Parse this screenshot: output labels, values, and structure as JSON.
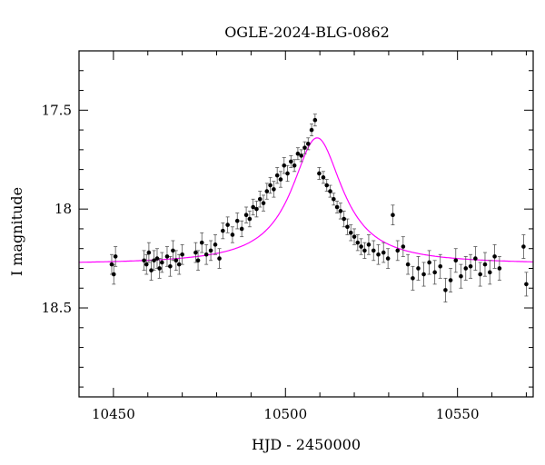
{
  "chart_data": {
    "type": "scatter",
    "title": "OGLE-2024-BLG-0862",
    "xlabel": "HJD - 2450000",
    "ylabel": "I magnitude",
    "xlim": [
      10440,
      10572
    ],
    "ylim": [
      18.95,
      17.2
    ],
    "y_inverted": true,
    "x_ticks": [
      10450,
      10500,
      10550
    ],
    "x_tick_labels": [
      "10450",
      "10500",
      "10550"
    ],
    "y_ticks": [
      17.5,
      18.0,
      18.5
    ],
    "y_tick_labels": [
      "17.5",
      "18",
      "18.5"
    ],
    "grid": false,
    "legend": "none",
    "colors": {
      "data": "#000000",
      "errorbar": "#555555",
      "model": "#ff00ff"
    },
    "series": [
      {
        "kind": "points_with_errorbars",
        "x": [
          10449.5,
          10450.1,
          10450.6,
          10458.9,
          10459.6,
          10460.3,
          10461.0,
          10461.8,
          10462.7,
          10463.4,
          10464.1,
          10465.6,
          10466.5,
          10467.3,
          10468.2,
          10469.1,
          10470.0,
          10473.9,
          10474.6,
          10475.7,
          10477.0,
          10478.3,
          10479.6,
          10480.8,
          10481.8,
          10483.2,
          10484.6,
          10486.0,
          10487.3,
          10488.6,
          10489.6,
          10490.6,
          10491.6,
          10492.6,
          10493.6,
          10494.6,
          10495.6,
          10496.6,
          10497.6,
          10498.6,
          10499.6,
          10500.6,
          10501.6,
          10502.6,
          10503.6,
          10504.6,
          10505.6,
          10506.6,
          10507.6,
          10508.6,
          10509.8,
          10511.0,
          10512.0,
          10513.0,
          10514.0,
          10515.0,
          10516.0,
          10517.0,
          10518.0,
          10519.0,
          10520.0,
          10521.0,
          10522.0,
          10523.0,
          10524.2,
          10525.6,
          10527.0,
          10528.5,
          10529.8,
          10531.2,
          10532.6,
          10534.2,
          10535.6,
          10537.0,
          10538.6,
          10540.2,
          10541.8,
          10543.4,
          10545.0,
          10546.5,
          10548.0,
          10549.5,
          10551.0,
          10552.4,
          10553.8,
          10555.2,
          10556.6,
          10558.0,
          10559.4,
          10560.8,
          10562.2,
          10569.2,
          10570.0
        ],
        "y": [
          18.28,
          18.33,
          18.24,
          18.26,
          18.28,
          18.22,
          18.31,
          18.26,
          18.25,
          18.3,
          18.27,
          18.24,
          18.29,
          18.21,
          18.26,
          18.28,
          18.23,
          18.22,
          18.26,
          18.17,
          18.23,
          18.21,
          18.18,
          18.25,
          18.11,
          18.08,
          18.13,
          18.06,
          18.1,
          18.03,
          18.05,
          17.99,
          18.0,
          17.95,
          17.97,
          17.91,
          17.88,
          17.9,
          17.83,
          17.85,
          17.78,
          17.82,
          17.76,
          17.78,
          17.72,
          17.73,
          17.69,
          17.67,
          17.6,
          17.55,
          17.82,
          17.84,
          17.88,
          17.91,
          17.95,
          17.99,
          18.01,
          18.05,
          18.09,
          18.12,
          18.14,
          18.17,
          18.19,
          18.21,
          18.18,
          18.21,
          18.23,
          18.22,
          18.25,
          18.03,
          18.21,
          18.19,
          18.28,
          18.35,
          18.3,
          18.33,
          18.27,
          18.32,
          18.29,
          18.41,
          18.36,
          18.26,
          18.34,
          18.3,
          18.29,
          18.25,
          18.33,
          18.28,
          18.32,
          18.24,
          18.3,
          18.19,
          18.38
        ],
        "err": [
          0.05,
          0.05,
          0.05,
          0.05,
          0.05,
          0.05,
          0.05,
          0.05,
          0.05,
          0.05,
          0.05,
          0.05,
          0.05,
          0.05,
          0.05,
          0.05,
          0.05,
          0.05,
          0.05,
          0.05,
          0.05,
          0.05,
          0.05,
          0.05,
          0.04,
          0.04,
          0.04,
          0.04,
          0.04,
          0.04,
          0.04,
          0.04,
          0.04,
          0.04,
          0.04,
          0.04,
          0.04,
          0.04,
          0.04,
          0.04,
          0.04,
          0.04,
          0.03,
          0.03,
          0.03,
          0.03,
          0.03,
          0.03,
          0.03,
          0.03,
          0.03,
          0.03,
          0.03,
          0.03,
          0.03,
          0.03,
          0.04,
          0.04,
          0.04,
          0.04,
          0.04,
          0.04,
          0.04,
          0.04,
          0.05,
          0.05,
          0.05,
          0.05,
          0.05,
          0.05,
          0.05,
          0.05,
          0.05,
          0.06,
          0.06,
          0.06,
          0.06,
          0.06,
          0.06,
          0.06,
          0.06,
          0.06,
          0.06,
          0.06,
          0.06,
          0.06,
          0.06,
          0.06,
          0.06,
          0.06,
          0.06,
          0.06,
          0.06
        ]
      },
      {
        "kind": "model_curve",
        "t0": 10509.2,
        "peak_mag": 17.64,
        "baseline_mag": 18.28,
        "tE": 9.0
      }
    ]
  }
}
